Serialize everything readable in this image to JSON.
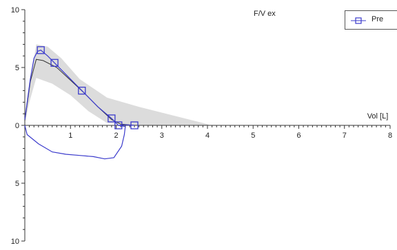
{
  "chart_data": {
    "type": "line",
    "title": "F/V ex",
    "xlabel": "Vol [L]",
    "ylabel": "",
    "xlim": [
      0,
      8
    ],
    "ylim": [
      -10,
      10
    ],
    "x_ticks": [
      "1",
      "2",
      "3",
      "4",
      "5",
      "6",
      "7",
      "8"
    ],
    "y_ticks": [
      "10",
      "5",
      "0",
      "5",
      "10"
    ],
    "grid": false,
    "legend_position": "top-right",
    "series": [
      {
        "name": "Pre",
        "color": "#3a3acc",
        "marker": "square",
        "points": [
          [
            0.35,
            6.5
          ],
          [
            0.65,
            5.4
          ],
          [
            1.25,
            3.0
          ],
          [
            1.9,
            0.6
          ],
          [
            2.05,
            0.0
          ],
          [
            2.4,
            0.0
          ]
        ],
        "expiratory": [
          [
            0.0,
            0.5
          ],
          [
            0.12,
            4.0
          ],
          [
            0.2,
            5.8
          ],
          [
            0.28,
            6.4
          ],
          [
            0.35,
            6.5
          ],
          [
            0.5,
            6.0
          ],
          [
            0.65,
            5.4
          ],
          [
            0.9,
            4.4
          ],
          [
            1.25,
            3.0
          ],
          [
            1.6,
            1.6
          ],
          [
            1.9,
            0.6
          ],
          [
            2.05,
            0.0
          ],
          [
            2.2,
            0.05
          ],
          [
            2.4,
            0.0
          ]
        ],
        "inspiratory": [
          [
            0.0,
            0.0
          ],
          [
            0.05,
            -0.8
          ],
          [
            0.3,
            -1.6
          ],
          [
            0.6,
            -2.3
          ],
          [
            0.9,
            -2.5
          ],
          [
            1.2,
            -2.6
          ],
          [
            1.5,
            -2.7
          ],
          [
            1.75,
            -2.9
          ],
          [
            1.95,
            -2.8
          ],
          [
            2.12,
            -1.8
          ],
          [
            2.18,
            -0.8
          ],
          [
            2.2,
            -0.1
          ],
          [
            2.05,
            0.0
          ]
        ]
      },
      {
        "name": "",
        "color": "#333333",
        "marker": "none",
        "points": [
          [
            0.0,
            0.4
          ],
          [
            0.12,
            3.8
          ],
          [
            0.25,
            5.7
          ],
          [
            0.4,
            5.6
          ],
          [
            0.7,
            5.0
          ],
          [
            1.0,
            3.9
          ],
          [
            1.3,
            2.8
          ],
          [
            1.6,
            1.6
          ],
          [
            1.9,
            0.5
          ],
          [
            2.1,
            0.1
          ],
          [
            2.4,
            0.0
          ]
        ]
      }
    ],
    "band": {
      "color": "#dcdcdc",
      "upper": [
        [
          0.0,
          0.5
        ],
        [
          0.15,
          4.5
        ],
        [
          0.25,
          7.0
        ],
        [
          0.5,
          6.8
        ],
        [
          0.8,
          5.8
        ],
        [
          1.2,
          4.0
        ],
        [
          1.8,
          2.4
        ],
        [
          2.5,
          1.6
        ],
        [
          3.2,
          0.9
        ],
        [
          4.0,
          0.1
        ],
        [
          4.05,
          0.0
        ]
      ],
      "lower": [
        [
          4.05,
          0.0
        ],
        [
          2.4,
          0.0
        ],
        [
          1.8,
          0.2
        ],
        [
          1.4,
          1.2
        ],
        [
          1.0,
          2.6
        ],
        [
          0.6,
          3.6
        ],
        [
          0.25,
          4.1
        ],
        [
          0.1,
          2.0
        ],
        [
          0.0,
          0.2
        ]
      ]
    }
  }
}
